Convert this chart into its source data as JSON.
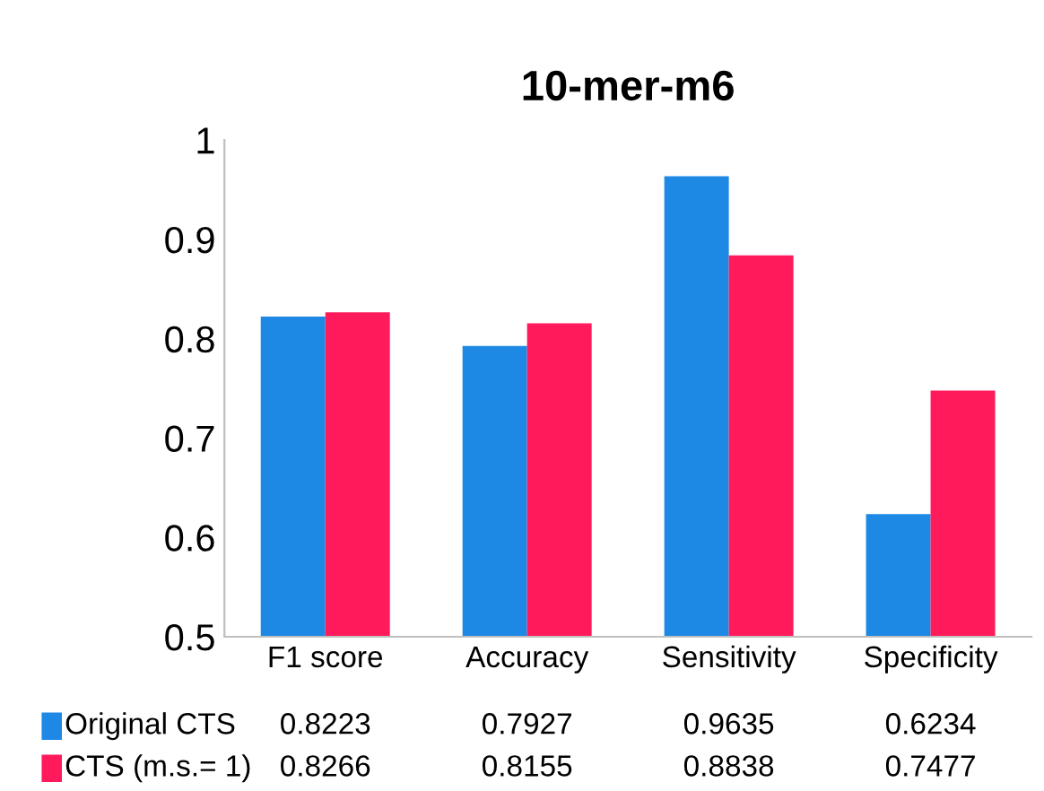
{
  "chart_data": {
    "type": "bar",
    "title": "10-mer-m6",
    "categories": [
      "F1 score",
      "Accuracy",
      "Sensitivity",
      "Specificity"
    ],
    "series": [
      {
        "name": "Original CTS",
        "color": "#1e88e5",
        "values": [
          0.8223,
          0.7927,
          0.9635,
          0.6234
        ]
      },
      {
        "name": "CTS (m.s.= 1)",
        "color": "#ff1a5c",
        "values": [
          0.8266,
          0.8155,
          0.8838,
          0.7477
        ]
      }
    ],
    "ylim": [
      0.5,
      1
    ],
    "yticks": [
      0.5,
      0.6,
      0.7,
      0.8,
      0.9,
      1
    ],
    "grid": false,
    "legend": "bottom left",
    "data_labels": true
  }
}
